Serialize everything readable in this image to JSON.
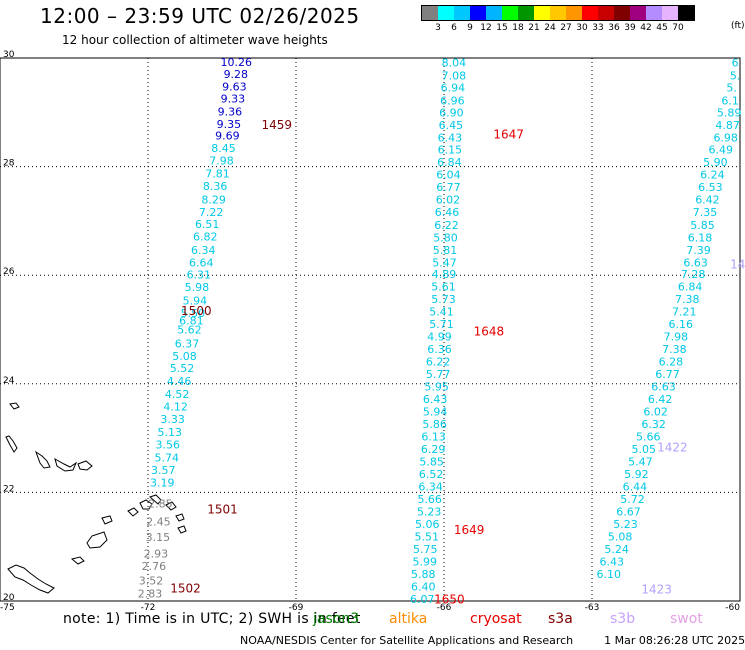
{
  "header": {
    "title": "12:00 – 23:59 UTC 02/26/2025",
    "subtitle": "12 hour collection of altimeter wave heights"
  },
  "legend": {
    "colors": [
      "#808080",
      "#00ffff",
      "#00c8ff",
      "#0000ff",
      "#00b4ff",
      "#00ff00",
      "#009600",
      "#ffff00",
      "#ffc800",
      "#ff9600",
      "#ff0000",
      "#c80000",
      "#800000",
      "#a00080",
      "#b48cff",
      "#e6b4ff",
      "#000000"
    ],
    "labels": [
      "3",
      "6",
      "9",
      "12",
      "15",
      "18",
      "21",
      "24",
      "27",
      "30",
      "33",
      "36",
      "39",
      "42",
      "45",
      "70"
    ],
    "unit": "(ft)"
  },
  "map": {
    "lat_ticks": [
      "20",
      "22",
      "24",
      "26",
      "28",
      "30"
    ],
    "lon_ticks": [
      "-75",
      "-72",
      "-69",
      "-66",
      "-63",
      "-60"
    ]
  },
  "chart_data": {
    "type": "scatter",
    "title": "12:00 – 23:59 UTC 02/26/2025",
    "subtitle": "12 hour collection of altimeter wave heights",
    "xlim": [
      -75,
      -60
    ],
    "ylim": [
      20,
      30
    ],
    "unit": "ft",
    "tracks": [
      {
        "color": "#0000c8",
        "values": [
          "10.26",
          "9.28",
          "9.63",
          "9.33",
          "9.36",
          "9.35",
          "9.69"
        ],
        "x": [
          -70.21,
          -70.22,
          -70.25,
          -70.28,
          -70.34,
          -70.36,
          -70.39
        ],
        "y": [
          29.91,
          29.69,
          29.46,
          29.24,
          29.0,
          28.77,
          28.55
        ]
      },
      {
        "color": "#00c8e6",
        "values": [
          "8.45",
          "7.98",
          "7.81",
          "8.36",
          "8.29",
          "7.22",
          "6.51",
          "6.82",
          "6.34",
          "6.64",
          "6.31",
          "5.98",
          "5.94",
          "5.50",
          "6.81",
          "5.62",
          "6.37",
          "5.08",
          "5.52",
          "4.46",
          "4.52",
          "4.12",
          "3.33",
          "5.13",
          "3.56",
          "5.74",
          "3.57",
          "3.19"
        ],
        "x": [
          -70.47,
          -70.51,
          -70.59,
          -70.64,
          -70.67,
          -70.72,
          -70.8,
          -70.84,
          -70.88,
          -70.92,
          -70.97,
          -71.01,
          -71.05,
          -71.09,
          -71.12,
          -71.16,
          -71.21,
          -71.26,
          -71.31,
          -71.37,
          -71.41,
          -71.44,
          -71.5,
          -71.56,
          -71.6,
          -71.62,
          -71.69,
          -71.71
        ],
        "y": [
          28.32,
          28.09,
          27.85,
          27.62,
          27.38,
          27.15,
          26.92,
          26.69,
          26.45,
          26.22,
          25.99,
          25.76,
          25.52,
          25.29,
          25.15,
          24.98,
          24.72,
          24.49,
          24.27,
          24.03,
          23.79,
          23.56,
          23.33,
          23.09,
          22.86,
          22.62,
          22.39,
          22.16
        ]
      },
      {
        "color": "#808080",
        "values": [
          "2.85",
          "2.45",
          "3.15",
          "2.93",
          "2.76",
          "3.52",
          "2.83"
        ],
        "x": [
          -71.75,
          -71.79,
          -71.8,
          -71.84,
          -71.88,
          -71.94,
          -71.96
        ],
        "y": [
          21.78,
          21.45,
          21.16,
          20.86,
          20.63,
          20.36,
          20.12
        ]
      },
      {
        "color": "#00c8e6",
        "values": [
          "8.04",
          "7.08",
          "6.94",
          "6.96",
          "6.90",
          "6.45",
          "6.43",
          "6.15",
          "6.84",
          "6.04",
          "6.77",
          "6.02",
          "6.46",
          "6.22",
          "5.80",
          "5.81",
          "5.47",
          "4.89",
          "5.61",
          "5.73",
          "5.41",
          "5.71",
          "4.99",
          "6.36",
          "6.22",
          "5.77",
          "5.95",
          "6.43",
          "5.94",
          "5.86",
          "6.13",
          "6.29",
          "5.85",
          "6.52",
          "6.34",
          "5.66",
          "5.23",
          "5.06",
          "5.51",
          "5.75",
          "5.99",
          "5.88",
          "6.40",
          "6.07"
        ],
        "x": [
          -65.8,
          -65.8,
          -65.82,
          -65.83,
          -65.85,
          -65.86,
          -65.88,
          -65.88,
          -65.89,
          -65.91,
          -65.91,
          -65.92,
          -65.94,
          -65.95,
          -65.97,
          -65.98,
          -65.99,
          -66.0,
          -66.01,
          -66.01,
          -66.05,
          -66.05,
          -66.09,
          -66.09,
          -66.12,
          -66.12,
          -66.15,
          -66.18,
          -66.18,
          -66.19,
          -66.21,
          -66.22,
          -66.25,
          -66.26,
          -66.27,
          -66.29,
          -66.3,
          -66.34,
          -66.35,
          -66.38,
          -66.39,
          -66.42,
          -66.42,
          -66.44
        ],
        "y": [
          29.9,
          29.66,
          29.44,
          29.2,
          28.98,
          28.75,
          28.52,
          28.3,
          28.07,
          27.84,
          27.61,
          27.38,
          27.15,
          26.91,
          26.68,
          26.45,
          26.22,
          26.0,
          25.77,
          25.54,
          25.31,
          25.08,
          24.85,
          24.62,
          24.39,
          24.16,
          23.93,
          23.7,
          23.47,
          23.24,
          23.01,
          22.78,
          22.55,
          22.32,
          22.09,
          21.86,
          21.63,
          21.4,
          21.17,
          20.94,
          20.71,
          20.48,
          20.25,
          20.02
        ]
      },
      {
        "color": "#00c8e6",
        "values": [
          "6",
          "5.",
          "5.",
          "6.1",
          "5.89",
          "4.87",
          "6.98",
          "6.49",
          "5.90",
          "6.24",
          "6.53",
          "6.42",
          "7.35",
          "5.85",
          "6.18",
          "7.39",
          "6.63",
          "7.28",
          "6.84",
          "7.38",
          "7.21",
          "6.16",
          "7.98",
          "7.38",
          "6.28",
          "6.77",
          "6.63",
          "6.42",
          "6.02",
          "6.32",
          "5.66",
          "5.05",
          "5.47",
          "5.92",
          "6.44",
          "5.72",
          "6.67",
          "5.23",
          "5.08",
          "5.24",
          "6.43",
          "6.10"
        ],
        "x": [
          -60.1,
          -60.1,
          -60.17,
          -60.2,
          -60.22,
          -60.25,
          -60.29,
          -60.39,
          -60.5,
          -60.56,
          -60.6,
          -60.66,
          -60.71,
          -60.76,
          -60.81,
          -60.84,
          -60.9,
          -60.95,
          -61.01,
          -61.07,
          -61.13,
          -61.2,
          -61.3,
          -61.33,
          -61.4,
          -61.47,
          -61.55,
          -61.62,
          -61.71,
          -61.75,
          -61.86,
          -61.95,
          -62.02,
          -62.1,
          -62.13,
          -62.18,
          -62.26,
          -62.32,
          -62.43,
          -62.5,
          -62.6,
          -62.66
        ],
        "y": [
          29.9,
          29.66,
          29.44,
          29.2,
          28.98,
          28.75,
          28.52,
          28.3,
          28.07,
          27.84,
          27.61,
          27.38,
          27.15,
          26.91,
          26.68,
          26.45,
          26.22,
          26.0,
          25.77,
          25.54,
          25.31,
          25.08,
          24.85,
          24.62,
          24.39,
          24.16,
          23.93,
          23.7,
          23.47,
          23.24,
          23.01,
          22.78,
          22.55,
          22.32,
          22.09,
          21.86,
          21.63,
          21.4,
          21.17,
          20.94,
          20.71,
          20.48
        ]
      }
    ],
    "time_labels": [
      {
        "text": "1459",
        "x": -69.7,
        "y": 28.76,
        "color": "#800000"
      },
      {
        "text": "1500",
        "x": -71.33,
        "y": 25.33,
        "color": "#800000"
      },
      {
        "text": "1501",
        "x": -70.8,
        "y": 21.68,
        "color": "#800000"
      },
      {
        "text": "1502",
        "x": -71.55,
        "y": 20.22,
        "color": "#800000"
      },
      {
        "text": "1647",
        "x": -65.0,
        "y": 28.58,
        "color": "#e60000"
      },
      {
        "text": "1648",
        "x": -65.4,
        "y": 24.95,
        "color": "#e60000"
      },
      {
        "text": "1649",
        "x": -65.8,
        "y": 21.3,
        "color": "#e60000"
      },
      {
        "text": "1650",
        "x": -66.2,
        "y": 20.02,
        "color": "#e60000"
      },
      {
        "text": "14",
        "x": -60.2,
        "y": 26.19,
        "color": "#b4a0ff"
      },
      {
        "text": "1422",
        "x": -61.68,
        "y": 22.82,
        "color": "#b4a0ff"
      },
      {
        "text": "1423",
        "x": -62.0,
        "y": 20.2,
        "color": "#b4a0ff"
      }
    ]
  },
  "notes": {
    "text": "note: 1) Time is in UTC; 2) SWH is in feet",
    "satellites": [
      {
        "name": "jason3",
        "color": "#008000"
      },
      {
        "name": "altika",
        "color": "#ff8c00"
      },
      {
        "name": "cryosat",
        "color": "#e60000"
      },
      {
        "name": "s3a",
        "color": "#800000"
      },
      {
        "name": "s3b",
        "color": "#c8a0ff"
      },
      {
        "name": "swot",
        "color": "#e6a0e6"
      }
    ]
  },
  "footer": {
    "credit": "NOAA/NESDIS Center for Satellite Applications and Research",
    "timestamp": "1 Mar 08:26:28 UTC 2025"
  }
}
